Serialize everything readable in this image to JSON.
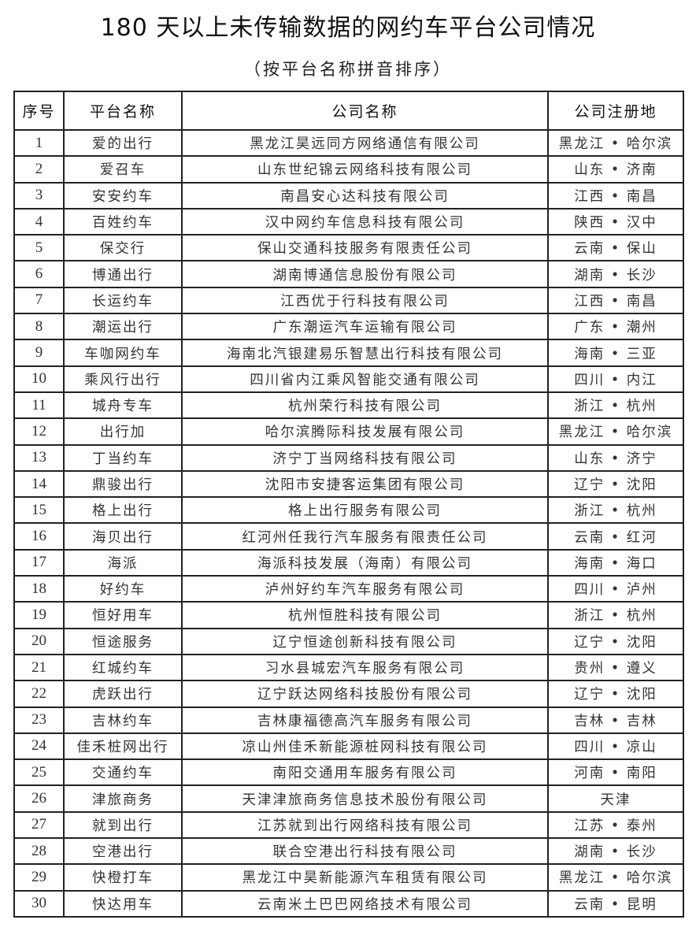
{
  "title": "180 天以上未传输数据的网约车平台公司情况",
  "subtitle": "（按平台名称拼音排序）",
  "table": {
    "headers": [
      "序号",
      "平台名称",
      "公司名称",
      "公司注册地"
    ],
    "rows": [
      [
        "1",
        "爱的出行",
        "黑龙江昊远同方网络通信有限公司",
        "黑龙江 • 哈尔滨"
      ],
      [
        "2",
        "爱召车",
        "山东世纪锦云网络科技有限公司",
        "山东 • 济南"
      ],
      [
        "3",
        "安安约车",
        "南昌安心达科技有限公司",
        "江西 • 南昌"
      ],
      [
        "4",
        "百姓约车",
        "汉中网约车信息科技有限公司",
        "陕西 • 汉中"
      ],
      [
        "5",
        "保交行",
        "保山交通科技服务有限责任公司",
        "云南 • 保山"
      ],
      [
        "6",
        "博通出行",
        "湖南博通信息股份有限公司",
        "湖南 • 长沙"
      ],
      [
        "7",
        "长运约车",
        "江西优于行科技有限公司",
        "江西 • 南昌"
      ],
      [
        "8",
        "潮运出行",
        "广东潮运汽车运输有限公司",
        "广东 • 潮州"
      ],
      [
        "9",
        "车咖网约车",
        "海南北汽银建易乐智慧出行科技有限公司",
        "海南 • 三亚"
      ],
      [
        "10",
        "乘风行出行",
        "四川省内江乘风智能交通有限公司",
        "四川 • 内江"
      ],
      [
        "11",
        "城舟专车",
        "杭州荣行科技有限公司",
        "浙江 • 杭州"
      ],
      [
        "12",
        "出行加",
        "哈尔滨腾际科技发展有限公司",
        "黑龙江 • 哈尔滨"
      ],
      [
        "13",
        "丁当约车",
        "济宁丁当网络科技有限公司",
        "山东 • 济宁"
      ],
      [
        "14",
        "鼎骏出行",
        "沈阳市安捷客运集团有限公司",
        "辽宁 • 沈阳"
      ],
      [
        "15",
        "格上出行",
        "格上出行服务有限公司",
        "浙江 • 杭州"
      ],
      [
        "16",
        "海贝出行",
        "红河州任我行汽车服务有限责任公司",
        "云南 • 红河"
      ],
      [
        "17",
        "海派",
        "海派科技发展（海南）有限公司",
        "海南 • 海口"
      ],
      [
        "18",
        "好约车",
        "泸州好约车汽车服务有限公司",
        "四川 • 泸州"
      ],
      [
        "19",
        "恒好用车",
        "杭州恒胜科技有限公司",
        "浙江 • 杭州"
      ],
      [
        "20",
        "恒途服务",
        "辽宁恒途创新科技有限公司",
        "辽宁 • 沈阳"
      ],
      [
        "21",
        "红城约车",
        "习水县城宏汽车服务有限公司",
        "贵州 • 遵义"
      ],
      [
        "22",
        "虎跃出行",
        "辽宁跃达网络科技股份有限公司",
        "辽宁 • 沈阳"
      ],
      [
        "23",
        "吉林约车",
        "吉林康福德高汽车服务有限公司",
        "吉林 • 吉林"
      ],
      [
        "24",
        "佳禾桩网出行",
        "凉山州佳禾新能源桩网科技有限公司",
        "四川 • 凉山"
      ],
      [
        "25",
        "交通约车",
        "南阳交通用车服务有限公司",
        "河南 • 南阳"
      ],
      [
        "26",
        "津旅商务",
        "天津津旅商务信息技术股份有限公司",
        "天津"
      ],
      [
        "27",
        "就到出行",
        "江苏就到出行网络科技有限公司",
        "江苏 • 泰州"
      ],
      [
        "28",
        "空港出行",
        "联合空港出行科技有限公司",
        "湖南 • 长沙"
      ],
      [
        "29",
        "快橙打车",
        "黑龙江中昊新能源汽车租赁有限公司",
        "黑龙江 • 哈尔滨"
      ],
      [
        "30",
        "快达用车",
        "云南米土巴巴网络技术有限公司",
        "云南 • 昆明"
      ]
    ]
  }
}
